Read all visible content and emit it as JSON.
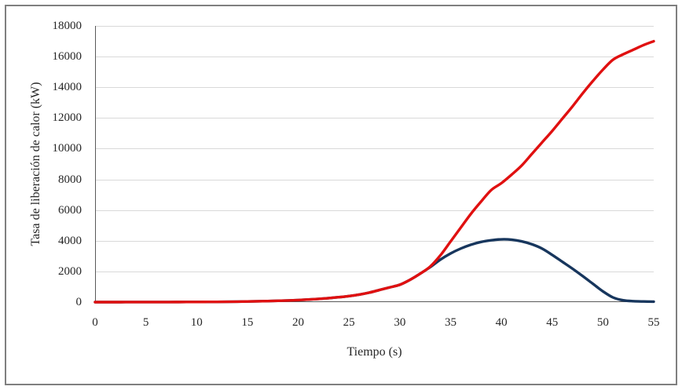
{
  "chart_data": {
    "type": "line",
    "title": "",
    "xlabel": "Tiempo (s)",
    "ylabel": "Tasa de liberación de calor (kW)",
    "xlim": [
      0,
      55
    ],
    "ylim": [
      0,
      18000
    ],
    "x_ticks": [
      0,
      5,
      10,
      15,
      20,
      25,
      30,
      35,
      40,
      45,
      50,
      55
    ],
    "y_ticks": [
      0,
      2000,
      4000,
      6000,
      8000,
      10000,
      12000,
      14000,
      16000,
      18000
    ],
    "grid": "horizontal-only",
    "legend": "none",
    "x": [
      0,
      1,
      2,
      3,
      4,
      5,
      6,
      7,
      8,
      9,
      10,
      11,
      12,
      13,
      14,
      15,
      16,
      17,
      18,
      19,
      20,
      21,
      22,
      23,
      24,
      25,
      26,
      27,
      28,
      29,
      30,
      31,
      32,
      33,
      34,
      35,
      36,
      37,
      38,
      39,
      40,
      41,
      42,
      43,
      44,
      45,
      46,
      47,
      48,
      49,
      50,
      51,
      52,
      53,
      54,
      55
    ],
    "series": [
      {
        "name": "curva-azul",
        "color": "#17365d",
        "values": [
          0,
          0,
          0,
          1,
          1,
          2,
          3,
          4,
          6,
          8,
          11,
          14,
          18,
          24,
          31,
          40,
          52,
          66,
          84,
          106,
          133,
          167,
          208,
          259,
          320,
          395,
          490,
          620,
          790,
          960,
          1130,
          1450,
          1850,
          2280,
          2770,
          3170,
          3490,
          3740,
          3920,
          4030,
          4090,
          4070,
          3960,
          3770,
          3490,
          3080,
          2630,
          2180,
          1700,
          1200,
          700,
          300,
          120,
          60,
          40,
          30
        ]
      },
      {
        "name": "curva-roja",
        "color": "#e01010",
        "values": [
          0,
          0,
          0,
          1,
          1,
          2,
          3,
          4,
          6,
          8,
          11,
          14,
          18,
          24,
          31,
          40,
          52,
          66,
          84,
          106,
          133,
          167,
          208,
          259,
          320,
          395,
          490,
          620,
          790,
          960,
          1130,
          1450,
          1850,
          2320,
          3050,
          3950,
          4850,
          5750,
          6550,
          7300,
          7750,
          8300,
          8900,
          9650,
          10400,
          11150,
          11950,
          12750,
          13600,
          14400,
          15150,
          15800,
          16150,
          16450,
          16750,
          17000
        ]
      }
    ]
  },
  "style_colors": {
    "gridline": "#d9d9d9",
    "axis_line": "#595959",
    "tick_text": "#262626",
    "outer_border": "#7f7f7f",
    "background": "#ffffff"
  }
}
